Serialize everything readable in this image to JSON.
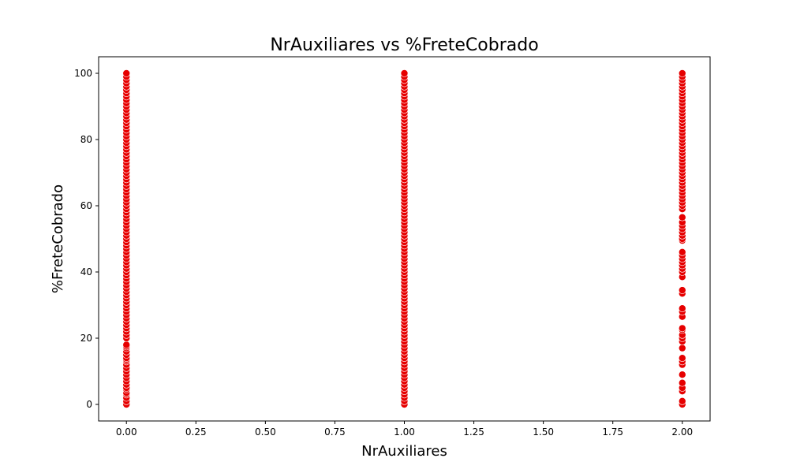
{
  "chart_data": {
    "type": "scatter",
    "title": "NrAuxiliares vs %FreteCobrado",
    "xlabel": "NrAuxiliares",
    "ylabel": "%FreteCobrado",
    "xlim": [
      -0.1,
      2.1
    ],
    "ylim": [
      -5,
      105
    ],
    "xticks": [
      0.0,
      0.25,
      0.5,
      0.75,
      1.0,
      1.25,
      1.5,
      1.75,
      2.0
    ],
    "xtick_labels": [
      "0.00",
      "0.25",
      "0.50",
      "0.75",
      "1.00",
      "1.25",
      "1.50",
      "1.75",
      "2.00"
    ],
    "yticks": [
      0,
      20,
      40,
      60,
      80,
      100
    ],
    "ytick_labels": [
      "0",
      "20",
      "40",
      "60",
      "80",
      "100"
    ],
    "grid": false,
    "marker_color": "#e60000",
    "marker_edge": "#ffffff",
    "series": [
      {
        "x": 0,
        "y": [
          0,
          1,
          2,
          3,
          3.5,
          4.5,
          5,
          6,
          7,
          8,
          9,
          10,
          11,
          12,
          13,
          13.5,
          14,
          15,
          16,
          17,
          17.5,
          18,
          20,
          21,
          22,
          23,
          24,
          25,
          26,
          27,
          28,
          29,
          30,
          31,
          32,
          33,
          34,
          35,
          36,
          37,
          38,
          39,
          40,
          41,
          42,
          43,
          44,
          45,
          46,
          47,
          48,
          49,
          50,
          51,
          52,
          53,
          54,
          55,
          56,
          57,
          58,
          59,
          60,
          61,
          62,
          63,
          64,
          65,
          66,
          67,
          68,
          69,
          70,
          71,
          72,
          73,
          74,
          75,
          76,
          77,
          78,
          79,
          80,
          81,
          82,
          83,
          84,
          85,
          86,
          87,
          88,
          89,
          90,
          91,
          92,
          93,
          94,
          95,
          96,
          97,
          98,
          99,
          100
        ]
      },
      {
        "x": 1,
        "y": [
          0,
          1,
          2,
          3,
          4,
          5,
          6,
          7,
          8,
          9,
          10,
          11,
          12,
          13,
          14,
          15,
          16,
          17,
          18,
          19,
          20,
          21,
          22,
          23,
          24,
          25,
          26,
          27,
          28,
          29,
          30,
          31,
          32,
          33,
          34,
          35,
          36,
          37,
          38,
          39,
          40,
          41,
          42,
          43,
          44,
          45,
          46,
          47,
          48,
          49,
          50,
          51,
          52,
          53,
          54,
          55,
          56,
          57,
          58,
          59,
          60,
          61,
          62,
          63,
          64,
          65,
          66,
          67,
          68,
          69,
          70,
          71,
          72,
          73,
          74,
          75,
          76,
          77,
          78,
          79,
          80,
          81,
          82,
          83,
          84,
          85,
          86,
          87,
          88,
          89,
          90,
          91,
          92,
          93,
          94,
          95,
          96,
          97,
          98,
          99,
          100
        ]
      },
      {
        "x": 2,
        "y": [
          0,
          1,
          4,
          5,
          6.5,
          9,
          12,
          13,
          14,
          17,
          19,
          20,
          21,
          22.5,
          23,
          26.5,
          28,
          29,
          33.5,
          34.5,
          38.5,
          40,
          41,
          42,
          43,
          44,
          45,
          46,
          49.5,
          50,
          51,
          52,
          53,
          54,
          55,
          56.5,
          59,
          60,
          61,
          62,
          63,
          64,
          65,
          66,
          67,
          68,
          69,
          70,
          71,
          72,
          73,
          74,
          75,
          76,
          77,
          78,
          79,
          80,
          81,
          82,
          83,
          84,
          85,
          86,
          87,
          88,
          89,
          90,
          91,
          92,
          93,
          94,
          95,
          96,
          97,
          98,
          99,
          100
        ]
      }
    ]
  }
}
